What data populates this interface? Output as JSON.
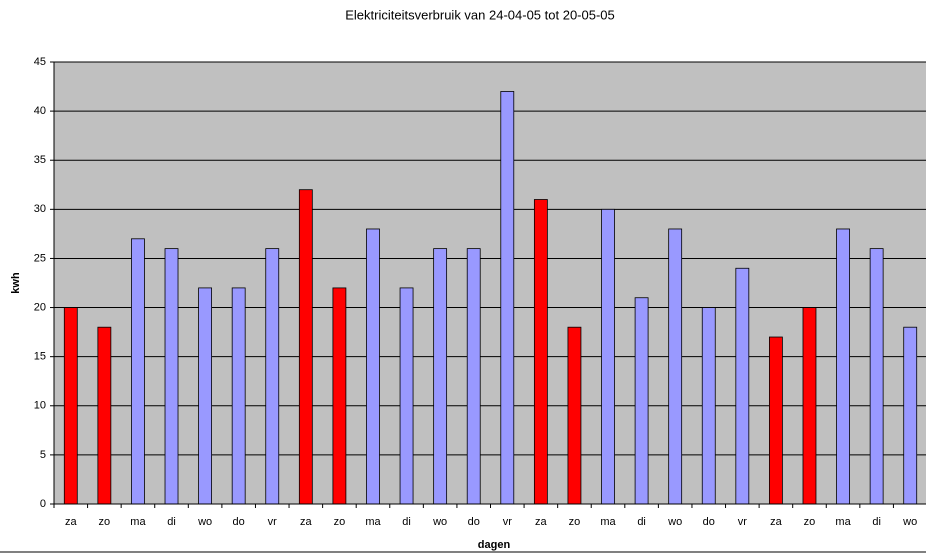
{
  "chart_data": {
    "type": "bar",
    "title": "Elektriciteitsverbruik van 24-04-05 tot 20-05-05",
    "ylabel": "kwh",
    "xlabel": "dagen",
    "categories": [
      "za",
      "zo",
      "ma",
      "di",
      "wo",
      "do",
      "vr",
      "za",
      "zo",
      "ma",
      "di",
      "wo",
      "do",
      "vr",
      "za",
      "zo",
      "ma",
      "di",
      "wo",
      "do",
      "vr",
      "za",
      "zo",
      "ma",
      "di",
      "wo"
    ],
    "values": [
      20,
      18,
      27,
      26,
      22,
      22,
      26,
      32,
      22,
      28,
      22,
      26,
      26,
      42,
      31,
      18,
      30,
      21,
      28,
      20,
      24,
      17,
      20,
      28,
      26,
      18
    ],
    "colors": [
      "#ff0000",
      "#ff0000",
      "#9999ff",
      "#9999ff",
      "#9999ff",
      "#9999ff",
      "#9999ff",
      "#ff0000",
      "#ff0000",
      "#9999ff",
      "#9999ff",
      "#9999ff",
      "#9999ff",
      "#9999ff",
      "#ff0000",
      "#ff0000",
      "#9999ff",
      "#9999ff",
      "#9999ff",
      "#9999ff",
      "#9999ff",
      "#ff0000",
      "#ff0000",
      "#9999ff",
      "#9999ff",
      "#9999ff"
    ],
    "ylim": [
      0,
      45
    ],
    "yticks": [
      0,
      5,
      10,
      15,
      20,
      25,
      30,
      35,
      40,
      45
    ],
    "grid": true
  }
}
